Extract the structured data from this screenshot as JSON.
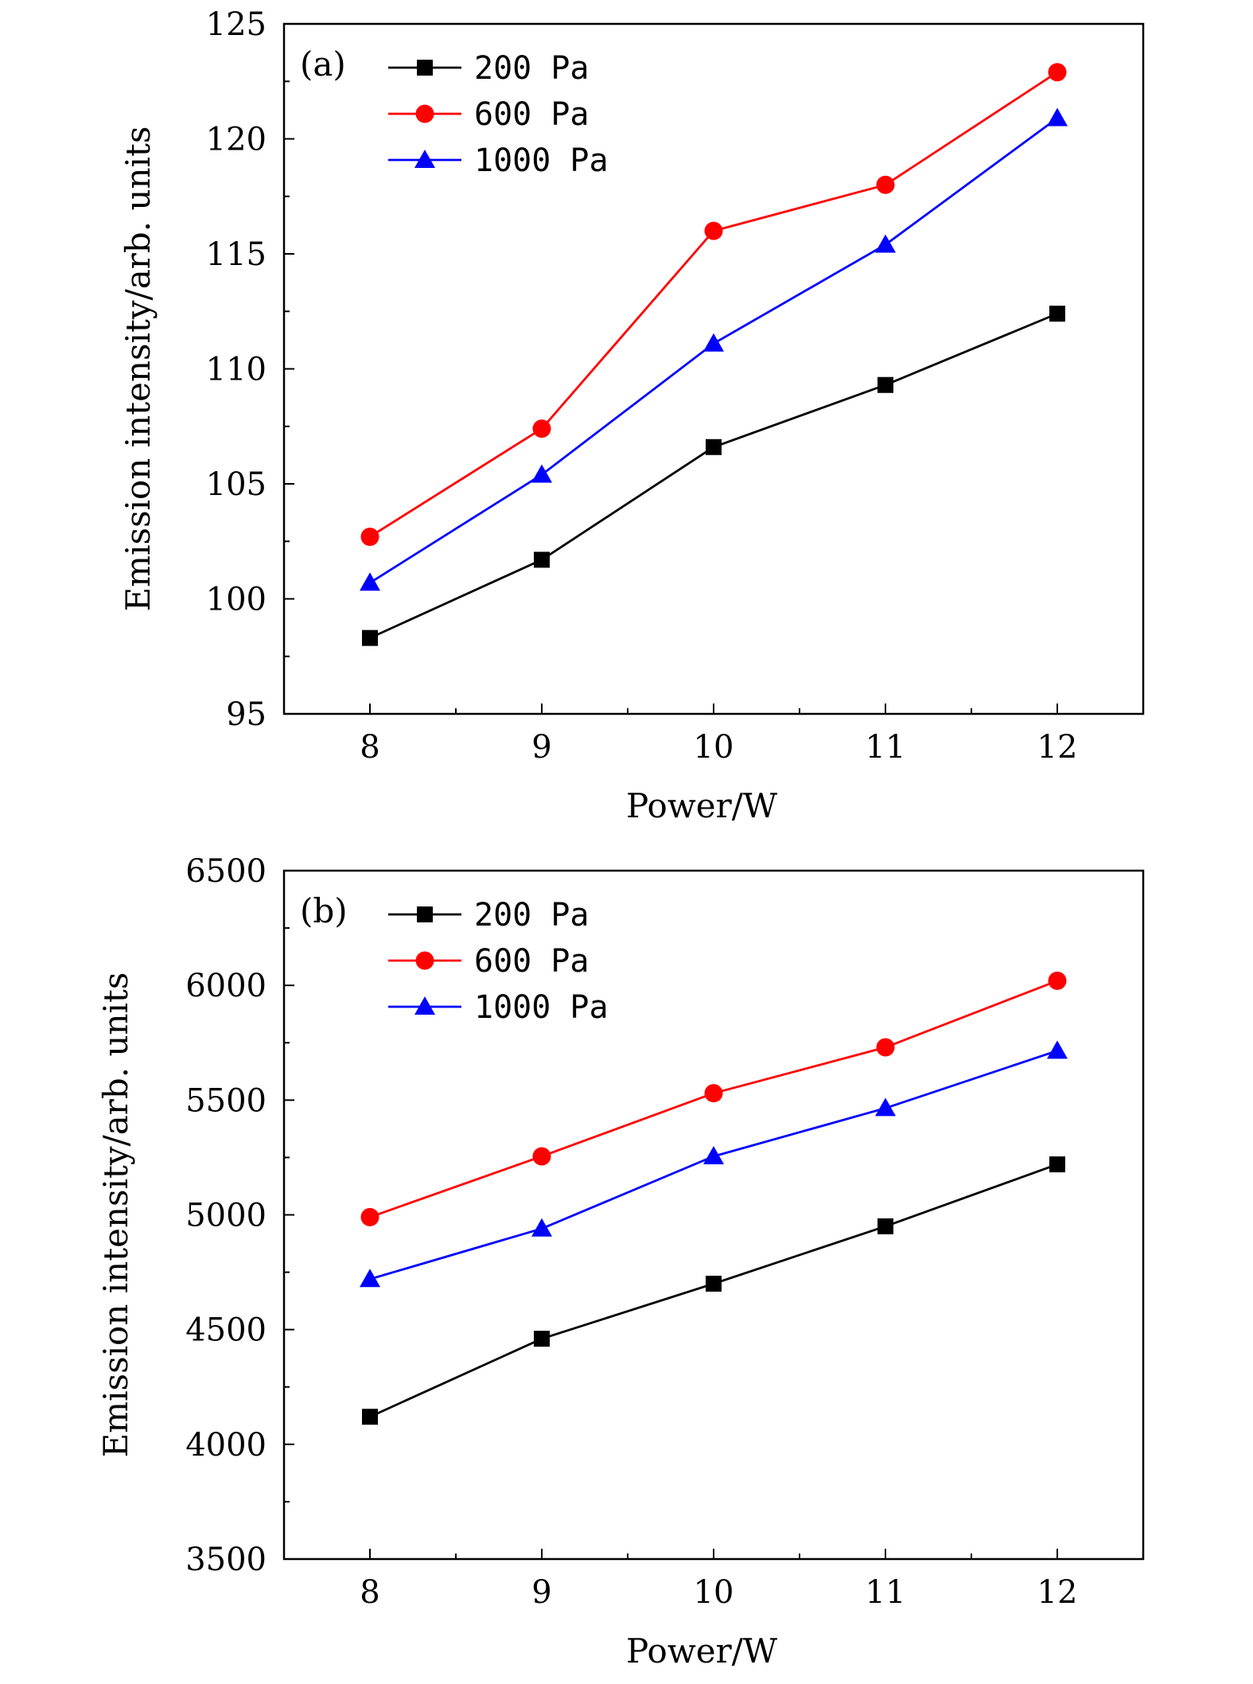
{
  "chart_data": [
    {
      "type": "line",
      "panel_label": "(a)",
      "x": [
        8,
        9,
        10,
        11,
        12
      ],
      "xlabel": "Power/W",
      "ylabel": "Emission intensity/arb. units",
      "xlim": [
        7.5,
        12.5
      ],
      "ylim": [
        95,
        125
      ],
      "xticks": [
        8,
        9,
        10,
        11,
        12
      ],
      "yticks": [
        95,
        100,
        105,
        110,
        115,
        120,
        125
      ],
      "grid": false,
      "legend_position": "top-left",
      "series": [
        {
          "name": "200 Pa",
          "color": "#000000",
          "marker": "square",
          "values": [
            98.3,
            101.7,
            106.6,
            109.3,
            112.4
          ]
        },
        {
          "name": "600 Pa",
          "color": "#ff0000",
          "marker": "circle",
          "values": [
            102.7,
            107.4,
            116.0,
            118.0,
            122.9
          ]
        },
        {
          "name": "1000 Pa",
          "color": "#0000ff",
          "marker": "triangle",
          "values": [
            100.7,
            105.4,
            111.1,
            115.4,
            120.9
          ]
        }
      ]
    },
    {
      "type": "line",
      "panel_label": "(b)",
      "x": [
        8,
        9,
        10,
        11,
        12
      ],
      "xlabel": "Power/W",
      "ylabel": "Emission intensity/arb. units",
      "xlim": [
        7.5,
        12.5
      ],
      "ylim": [
        3500,
        6500
      ],
      "xticks": [
        8,
        9,
        10,
        11,
        12
      ],
      "yticks": [
        3500,
        4000,
        4500,
        5000,
        5500,
        6000,
        6500
      ],
      "grid": false,
      "legend_position": "top-left",
      "series": [
        {
          "name": "200 Pa",
          "color": "#000000",
          "marker": "square",
          "values": [
            4120,
            4460,
            4700,
            4950,
            5220
          ]
        },
        {
          "name": "600 Pa",
          "color": "#ff0000",
          "marker": "circle",
          "values": [
            4990,
            5255,
            5530,
            5730,
            6020
          ]
        },
        {
          "name": "1000 Pa",
          "color": "#0000ff",
          "marker": "triangle",
          "values": [
            4720,
            4940,
            5255,
            5465,
            5715
          ]
        }
      ]
    }
  ]
}
